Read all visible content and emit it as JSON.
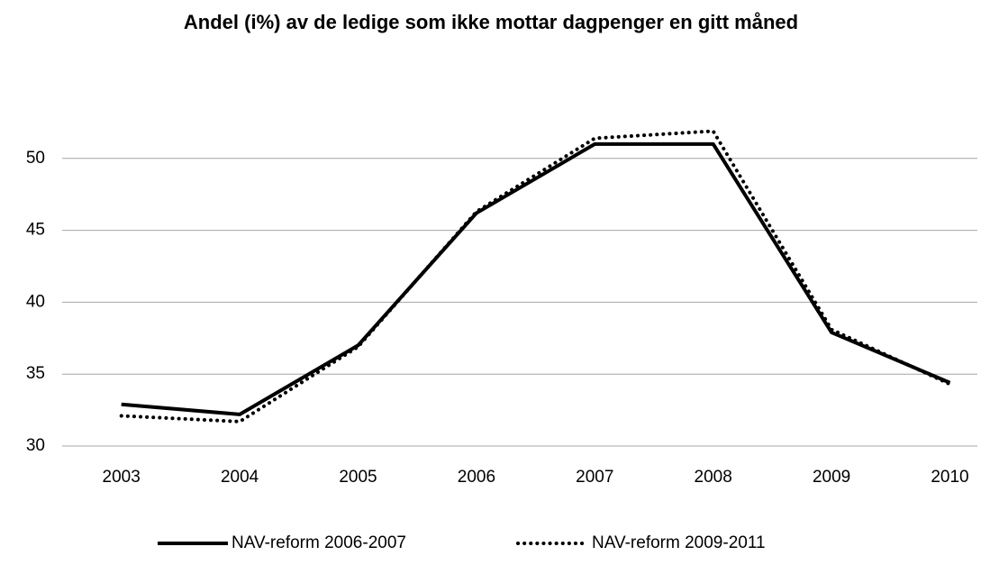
{
  "chart_data": {
    "type": "line",
    "title": "Andel (i%) av de ledige som ikke mottar dagpenger en gitt måned",
    "categories": [
      "2003",
      "2004",
      "2005",
      "2006",
      "2007",
      "2008",
      "2009",
      "2010"
    ],
    "series": [
      {
        "name": "NAV-reform 2006-2007",
        "color": "#000000",
        "style": "solid",
        "values": [
          32.9,
          32.2,
          37.0,
          46.2,
          51.0,
          51.0,
          37.9,
          34.4
        ]
      },
      {
        "name": "NAV-reform 2009-2011",
        "color": "#000000",
        "style": "dotted",
        "values": [
          32.1,
          31.7,
          36.9,
          46.3,
          51.4,
          51.9,
          38.1,
          34.3
        ]
      }
    ],
    "ylim": [
      30,
      55
    ],
    "yticks": [
      30,
      35,
      40,
      45,
      50
    ],
    "grid": true,
    "legend": "bottom"
  }
}
